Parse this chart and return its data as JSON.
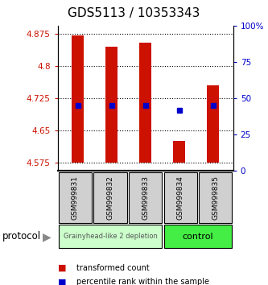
{
  "title": "GDS5113 / 10353343",
  "samples": [
    "GSM999831",
    "GSM999832",
    "GSM999833",
    "GSM999834",
    "GSM999835"
  ],
  "bar_bottom": 4.575,
  "bar_tops": [
    4.872,
    4.845,
    4.855,
    4.625,
    4.755
  ],
  "blue_y": [
    4.708,
    4.708,
    4.708,
    4.697,
    4.708
  ],
  "ylim_left": [
    4.555,
    4.895
  ],
  "ylim_right": [
    0,
    100
  ],
  "yticks_left": [
    4.575,
    4.65,
    4.725,
    4.8,
    4.875
  ],
  "yticks_right": [
    0,
    25,
    50,
    75,
    100
  ],
  "ytick_labels_left": [
    "4.575",
    "4.65",
    "4.725",
    "4.8",
    "4.875"
  ],
  "ytick_labels_right": [
    "0",
    "25",
    "50",
    "75",
    "100%"
  ],
  "bar_color": "#cc1100",
  "blue_color": "#0000cc",
  "group1_label": "Grainyhead-like 2 depletion",
  "group2_label": "control",
  "group1_bg": "#ccffcc",
  "group2_bg": "#44ee44",
  "protocol_label": "protocol",
  "legend_red": "transformed count",
  "legend_blue": "percentile rank within the sample",
  "bg_color": "#ffffff",
  "bar_width": 0.35,
  "title_fontsize": 11,
  "figsize": [
    3.33,
    3.54
  ],
  "dpi": 100
}
